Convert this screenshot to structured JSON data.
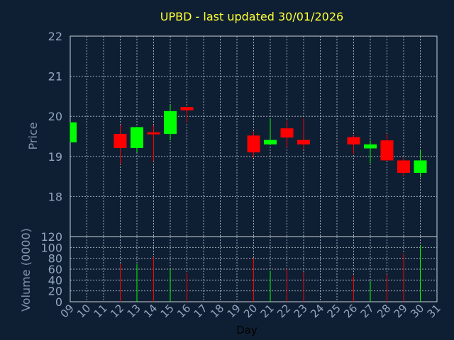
{
  "chart_data": {
    "type": "candlestick",
    "title": "UPBD - last updated 30/01/2026",
    "xlabel": "Day",
    "price_ylabel": "Price",
    "volume_ylabel": "Volume (0000)",
    "x_ticks": [
      "09",
      "10",
      "11",
      "12",
      "13",
      "14",
      "15",
      "16",
      "17",
      "18",
      "19",
      "20",
      "21",
      "22",
      "23",
      "24",
      "25",
      "26",
      "27",
      "28",
      "29",
      "30",
      "31"
    ],
    "price_ylim": [
      17.0,
      22.0
    ],
    "price_yticks": [
      "22",
      "21",
      "20",
      "19",
      "18"
    ],
    "volume_ylim": [
      0,
      120
    ],
    "volume_yticks": [
      "120",
      "100",
      "80",
      "60",
      "40",
      "20",
      "0"
    ],
    "grid": true,
    "up_color": "#00ff00",
    "down_color": "#ff0000",
    "candles": [
      {
        "day": 9,
        "open": 19.35,
        "close": 19.85,
        "high": 19.85,
        "low": 19.35,
        "volume": 0
      },
      {
        "day": 12,
        "open": 19.56,
        "close": 19.21,
        "high": 19.78,
        "low": 18.8,
        "volume": 70
      },
      {
        "day": 13,
        "open": 19.21,
        "close": 19.73,
        "high": 19.73,
        "low": 19.1,
        "volume": 69
      },
      {
        "day": 14,
        "open": 19.6,
        "close": 19.55,
        "high": 19.78,
        "low": 18.88,
        "volume": 82
      },
      {
        "day": 15,
        "open": 19.56,
        "close": 20.13,
        "high": 20.28,
        "low": 19.4,
        "volume": 61
      },
      {
        "day": 16,
        "open": 20.23,
        "close": 20.15,
        "high": 20.23,
        "low": 19.85,
        "volume": 53
      },
      {
        "day": 20,
        "open": 19.52,
        "close": 19.1,
        "high": 19.62,
        "low": 18.97,
        "volume": 81
      },
      {
        "day": 21,
        "open": 19.3,
        "close": 19.41,
        "high": 19.94,
        "low": 19.3,
        "volume": 57
      },
      {
        "day": 22,
        "open": 19.7,
        "close": 19.47,
        "high": 19.9,
        "low": 19.22,
        "volume": 61
      },
      {
        "day": 23,
        "open": 19.41,
        "close": 19.3,
        "high": 19.95,
        "low": 19.17,
        "volume": 55
      },
      {
        "day": 26,
        "open": 19.48,
        "close": 19.3,
        "high": 19.52,
        "low": 19.06,
        "volume": 48
      },
      {
        "day": 27,
        "open": 19.2,
        "close": 19.3,
        "high": 19.4,
        "low": 18.83,
        "volume": 38
      },
      {
        "day": 28,
        "open": 19.4,
        "close": 18.9,
        "high": 19.55,
        "low": 18.9,
        "volume": 50
      },
      {
        "day": 29,
        "open": 18.9,
        "close": 18.59,
        "high": 18.97,
        "low": 18.5,
        "volume": 89
      },
      {
        "day": 30,
        "open": 18.59,
        "close": 18.9,
        "high": 19.15,
        "low": 18.48,
        "volume": 104
      }
    ]
  }
}
